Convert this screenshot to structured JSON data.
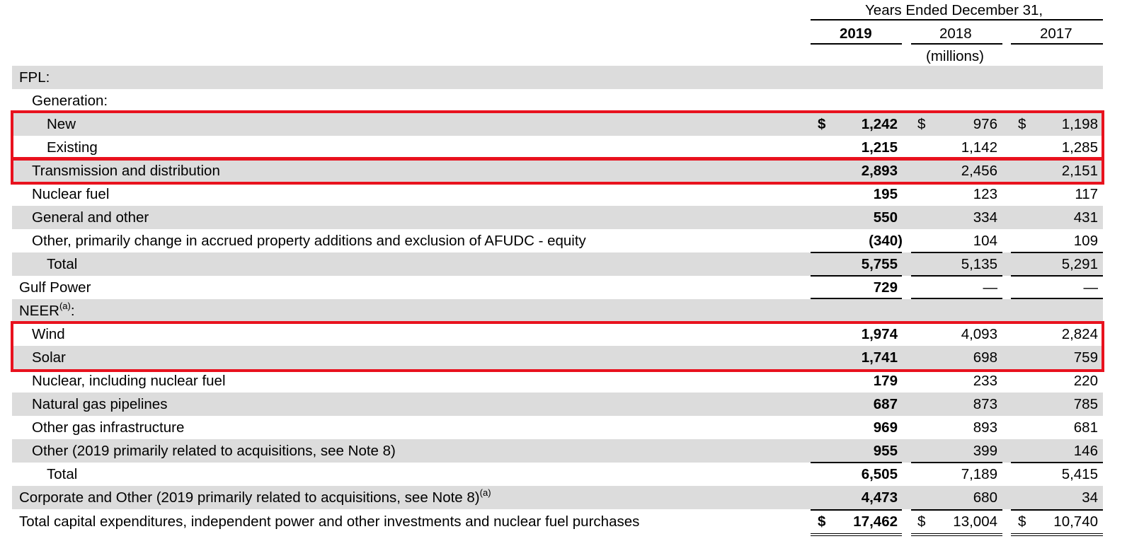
{
  "header": {
    "title": "Years Ended December 31,",
    "years": [
      "2019",
      "2018",
      "2017"
    ],
    "units": "(millions)"
  },
  "rows": [
    {
      "label": "FPL:",
      "values": [
        "",
        "",
        ""
      ]
    },
    {
      "label": "Generation:",
      "values": [
        "",
        "",
        ""
      ]
    },
    {
      "label": "New",
      "values": [
        "1,242",
        "976",
        "1,198"
      ],
      "dollar": "$"
    },
    {
      "label": "Existing",
      "values": [
        "1,215",
        "1,142",
        "1,285"
      ]
    },
    {
      "label": "Transmission and distribution",
      "values": [
        "2,893",
        "2,456",
        "2,151"
      ]
    },
    {
      "label": "Nuclear fuel",
      "values": [
        "195",
        "123",
        "117"
      ]
    },
    {
      "label": "General and other",
      "values": [
        "550",
        "334",
        "431"
      ]
    },
    {
      "label": "Other, primarily change in accrued property additions and exclusion of AFUDC - equity",
      "values": [
        "(340)",
        "104",
        "109"
      ]
    },
    {
      "label": "Total",
      "values": [
        "5,755",
        "5,135",
        "5,291"
      ]
    },
    {
      "label": "Gulf Power",
      "values": [
        "729",
        "—",
        "—"
      ]
    },
    {
      "label": "NEER",
      "sup": "(a)",
      "suffix": ":",
      "values": [
        "",
        "",
        ""
      ]
    },
    {
      "label": "Wind",
      "values": [
        "1,974",
        "4,093",
        "2,824"
      ]
    },
    {
      "label": "Solar",
      "values": [
        "1,741",
        "698",
        "759"
      ]
    },
    {
      "label": "Nuclear, including nuclear fuel",
      "values": [
        "179",
        "233",
        "220"
      ]
    },
    {
      "label": "Natural gas pipelines",
      "values": [
        "687",
        "873",
        "785"
      ]
    },
    {
      "label": "Other gas infrastructure",
      "values": [
        "969",
        "893",
        "681"
      ]
    },
    {
      "label": "Other (2019 primarily related to acquisitions, see Note 8)",
      "values": [
        "955",
        "399",
        "146"
      ]
    },
    {
      "label": "Total",
      "values": [
        "6,505",
        "7,189",
        "5,415"
      ]
    },
    {
      "label": "Corporate and Other (2019 primarily related to acquisitions, see Note 8)",
      "sup": "(a)",
      "values": [
        "4,473",
        "680",
        "34"
      ]
    },
    {
      "label": "Total capital expenditures, independent power and other investments and nuclear fuel purchases",
      "values": [
        "17,462",
        "13,004",
        "10,740"
      ],
      "dollar": "$"
    }
  ],
  "highlight_color": "#e8121e",
  "shade_color": "#dcdcdc"
}
